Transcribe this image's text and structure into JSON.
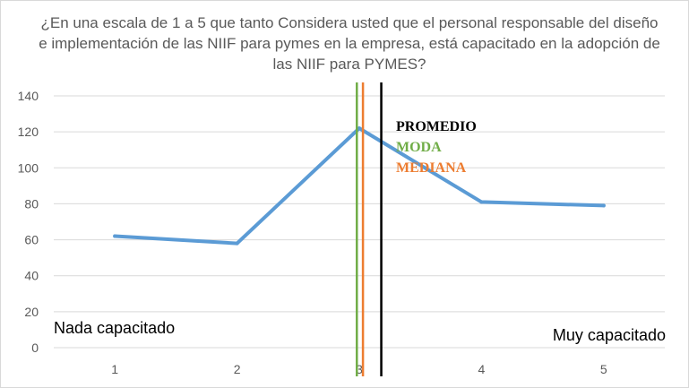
{
  "chart_data": {
    "type": "line",
    "title": "¿En una escala de 1 a 5 que tanto Considera usted que el personal responsable del diseño e implementación de las NIIF para pymes en la empresa, está capacitado en la adopción de las NIIF para PYMES?",
    "xlabel": "",
    "ylabel": "",
    "categories": [
      "1",
      "2",
      "3",
      "4",
      "5"
    ],
    "series": [
      {
        "values": [
          62,
          58,
          122,
          81,
          79
        ],
        "color": "#5b9bd5"
      }
    ],
    "ylim": [
      0,
      140
    ],
    "yticks": [
      "0",
      "20",
      "40",
      "60",
      "80",
      "100",
      "120",
      "140"
    ],
    "grid": true,
    "annotations": {
      "low_label": "Nada capacitado",
      "high_label": "Muy capacitado"
    },
    "reference_lines": [
      {
        "label": "PROMEDIO",
        "x": 3.18,
        "color": "#000000"
      },
      {
        "label": "MODA",
        "x": 2.98,
        "color": "#70ad47"
      },
      {
        "label": "MEDIANA",
        "x": 3.03,
        "color": "#ed7d31"
      }
    ]
  }
}
